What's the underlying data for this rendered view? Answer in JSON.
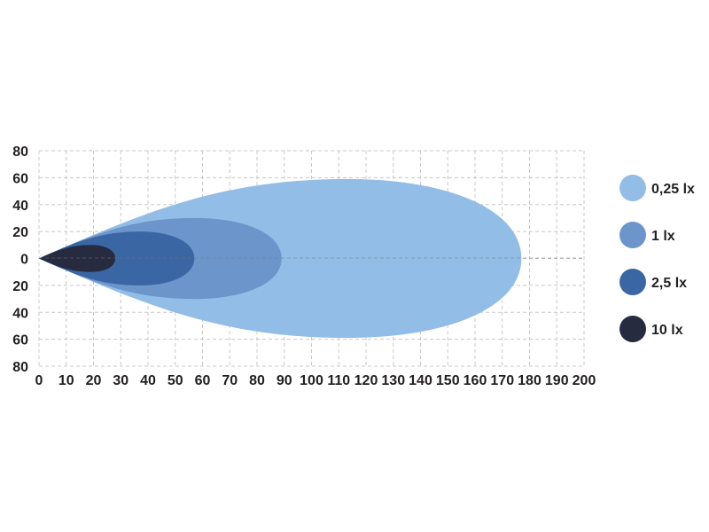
{
  "chart_data": {
    "type": "area",
    "title": "",
    "xlabel": "",
    "ylabel": "",
    "xlim": [
      0,
      200
    ],
    "ylim": [
      -80,
      80
    ],
    "x_ticks": [
      "0",
      "10",
      "20",
      "30",
      "40",
      "50",
      "60",
      "70",
      "80",
      "90",
      "100",
      "110",
      "120",
      "130",
      "140",
      "150",
      "160",
      "170",
      "180",
      "190",
      "200"
    ],
    "y_ticks": [
      "80",
      "60",
      "40",
      "20",
      "0",
      "20",
      "40",
      "60",
      "80"
    ],
    "grid": true,
    "legend_position": "right",
    "series": [
      {
        "name": "0,25 lx",
        "color": "#92bde6",
        "reach": 177,
        "widest_at": 113,
        "half_width": 59
      },
      {
        "name": "1 lx",
        "color": "#6b95cb",
        "reach": 89,
        "widest_at": 57,
        "half_width": 30
      },
      {
        "name": "2,5 lx",
        "color": "#3a66a3",
        "reach": 57,
        "widest_at": 37,
        "half_width": 20
      },
      {
        "name": "10 lx",
        "color": "#262b3f",
        "reach": 28,
        "widest_at": 19,
        "half_width": 10
      }
    ]
  }
}
